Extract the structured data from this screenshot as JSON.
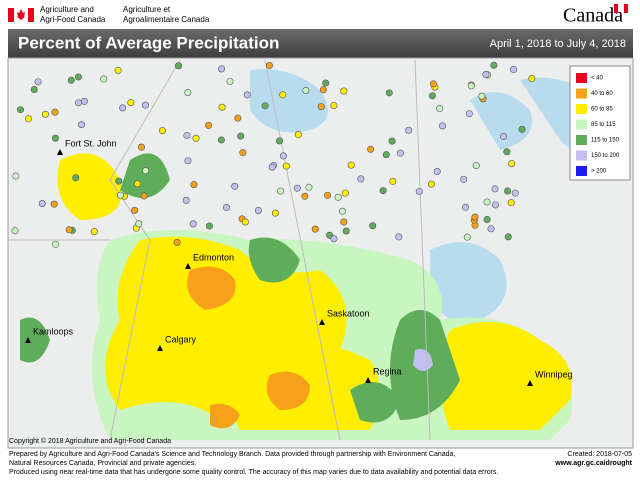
{
  "header": {
    "dept_en": [
      "Agriculture and",
      "Agri-Food Canada"
    ],
    "dept_fr": [
      "Agriculture et",
      "Agroalimentaire Canada"
    ],
    "wordmark": "Canada"
  },
  "title": "Percent of Average Precipitation",
  "date_range": "April 1, 2018 to July 4, 2018",
  "legend": [
    {
      "label": "< 40",
      "color": "#e8001c"
    },
    {
      "label": "40 to 60",
      "color": "#f7a11a"
    },
    {
      "label": "60 to 85",
      "color": "#ffee00"
    },
    {
      "label": "85 to 115",
      "color": "#c8f5c0"
    },
    {
      "label": "115 to 150",
      "color": "#5fad5a"
    },
    {
      "label": "150 to 200",
      "color": "#c3c0ef"
    },
    {
      "label": "> 200",
      "color": "#1c1cf0"
    }
  ],
  "cities": [
    "Fort St. John",
    "Edmonton",
    "Kamloops",
    "Calgary",
    "Saskatoon",
    "Regina",
    "Winnipeg"
  ],
  "copyright": "Copyright © 2018 Agriculture and Agri-Food Canada",
  "footer": {
    "lines": [
      "Prepared by Agriculture and Agri-Food Canada's Science and Technology Branch. Data provided through partnership with Environment Canada,",
      "Natural Resources Canada, Provincial and private agencies.",
      "Produced using near real-time data that has undergone some quality control. The accuracy of this map varies due to data availability and potential data errors."
    ],
    "created": "Created: 2018-07-05",
    "url": "www.agr.gc.ca/drought"
  }
}
